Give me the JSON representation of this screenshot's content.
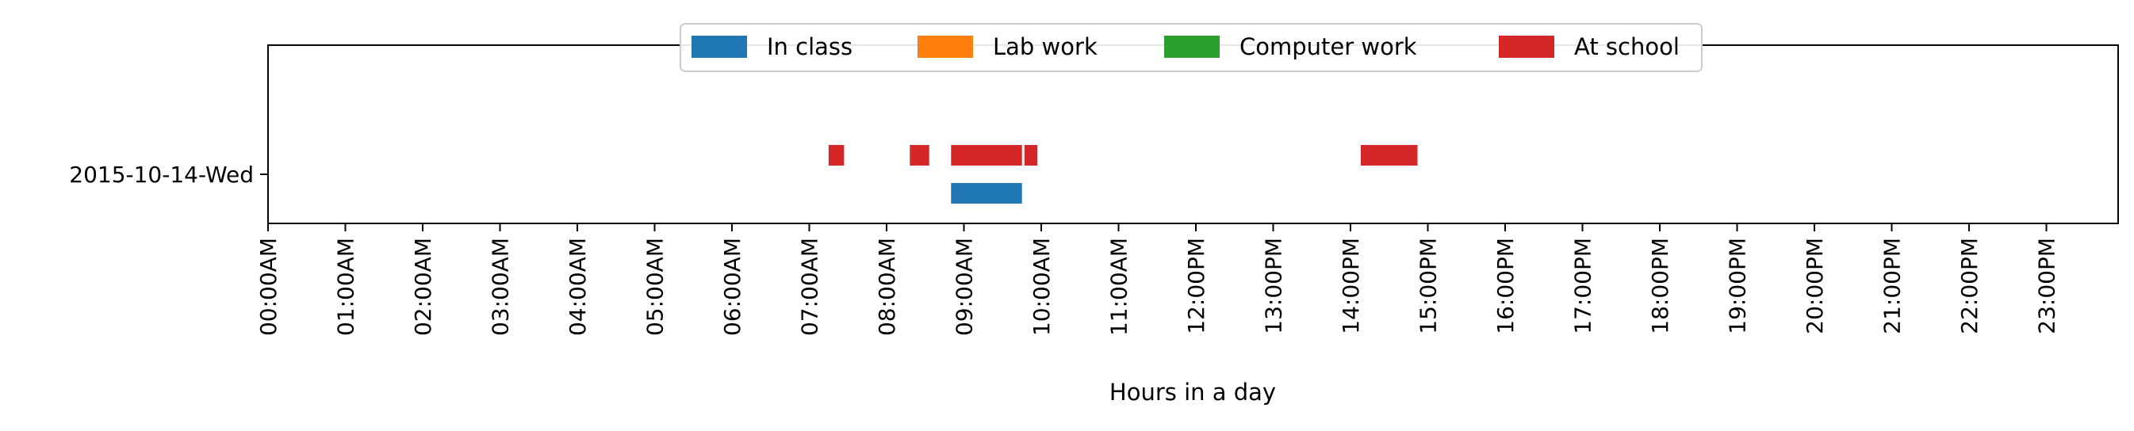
{
  "chart_data": {
    "type": "bar",
    "orientation": "horizontal",
    "subtype": "timeline",
    "title": "",
    "xlabel": "Hours in a day",
    "ylabel": "",
    "xlim": [
      "00:00",
      "24:00"
    ],
    "x_tick_labels": [
      "00:00AM",
      "01:00AM",
      "02:00AM",
      "03:00AM",
      "04:00AM",
      "05:00AM",
      "06:00AM",
      "07:00AM",
      "08:00AM",
      "09:00AM",
      "10:00AM",
      "11:00AM",
      "12:00PM",
      "13:00PM",
      "14:00PM",
      "15:00PM",
      "16:00PM",
      "17:00PM",
      "18:00PM",
      "19:00PM",
      "20:00PM",
      "21:00PM",
      "22:00PM",
      "23:00PM"
    ],
    "categories": [
      "2015-10-14-Wed"
    ],
    "grid": false,
    "legend_position": "top-center",
    "series": [
      {
        "name": "In class",
        "color": "#1f77b4",
        "intervals": [
          {
            "category": "2015-10-14-Wed",
            "start": "08:50",
            "end": "09:45"
          }
        ]
      },
      {
        "name": "Lab work",
        "color": "#ff7f0e",
        "intervals": []
      },
      {
        "name": "Computer work",
        "color": "#2ca02c",
        "intervals": []
      },
      {
        "name": "At school",
        "color": "#d62728",
        "intervals": [
          {
            "category": "2015-10-14-Wed",
            "start": "07:15",
            "end": "07:27"
          },
          {
            "category": "2015-10-14-Wed",
            "start": "08:18",
            "end": "08:33"
          },
          {
            "category": "2015-10-14-Wed",
            "start": "08:50",
            "end": "09:45"
          },
          {
            "category": "2015-10-14-Wed",
            "start": "09:47",
            "end": "09:57"
          },
          {
            "category": "2015-10-14-Wed",
            "start": "14:08",
            "end": "14:52"
          }
        ]
      }
    ]
  }
}
